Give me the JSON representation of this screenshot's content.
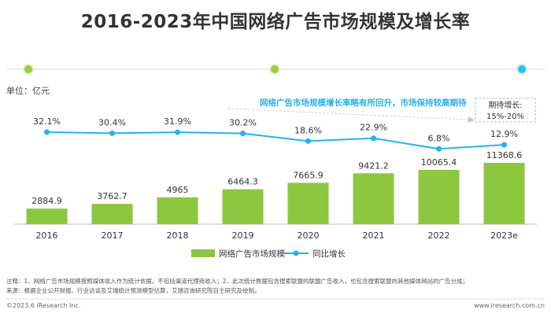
{
  "header": {
    "title": "2016-2023年中国网络广告市场规模及增长率",
    "unit_label": "单位：亿元"
  },
  "annotation": {
    "trend_text": "网络广告市场规模增长率略有所回升，市场保持较高期待",
    "expect_label": "期待增长:",
    "expect_value": "15%-20%"
  },
  "chart_data": {
    "type": "bar",
    "categories": [
      "2016",
      "2017",
      "2018",
      "2019",
      "2020",
      "2021",
      "2022",
      "2023e"
    ],
    "series": [
      {
        "name": "网络广告市场规模",
        "type": "bar",
        "values": [
          2884.9,
          3762.7,
          4965,
          6464.3,
          7665.9,
          9421.2,
          10065.4,
          11368.6
        ],
        "labels": [
          "2884.9",
          "3762.7",
          "4965",
          "6464.3",
          "7665.9",
          "9421.2",
          "10065.4",
          "11368.6"
        ],
        "color": "#8DC63F"
      },
      {
        "name": "同比增长",
        "type": "line",
        "values": [
          32.1,
          30.4,
          31.9,
          30.2,
          18.6,
          22.9,
          6.8,
          12.9
        ],
        "labels": [
          "32.1%",
          "30.4%",
          "31.9%",
          "30.2%",
          "18.6%",
          "22.9%",
          "6.8%",
          "12.9%"
        ],
        "color": "#27B2E6"
      }
    ]
  },
  "notes": {
    "line1": "注释：1、网络广告市场规模按照媒体收入作为统计依据，不包括渠道代理商收入；2、此次统计数据包含搜索联盟的联盟广告收入，也包含搜索联盟向其他媒体网站的广告分成；",
    "line2": "来源：根据企业公开财报、行业访谈及艾瑞统计预测模型估算，艾瑞咨询研究院自主研究及绘制。"
  },
  "footer": {
    "left": "©2023.6 iResearch Inc.",
    "right": "www.iresearch.com.cn"
  },
  "colors": {
    "bar": "#8DC63F",
    "line": "#27B2E6",
    "accent": "#27B2E6",
    "timeline_dot_green": "#9CCB3B",
    "timeline_dot_blue": "#27C4E6"
  }
}
